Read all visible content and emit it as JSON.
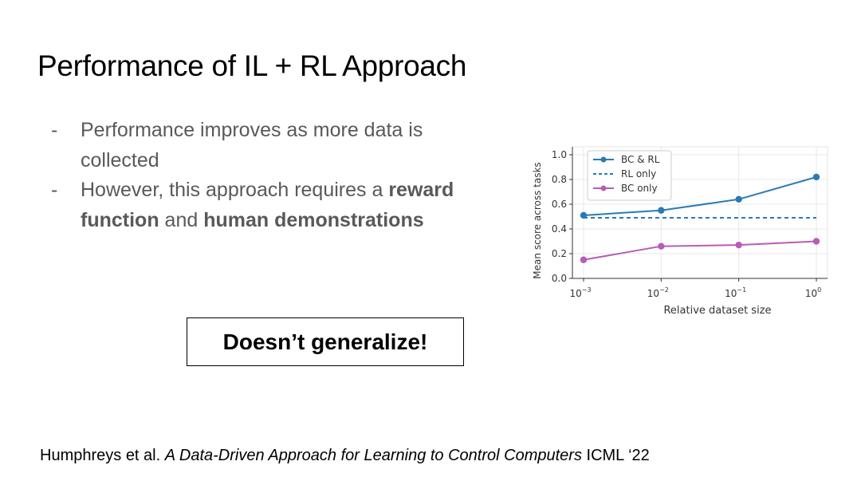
{
  "slide": {
    "title": "Performance of IL + RL Approach",
    "bullets": [
      {
        "dash": "-",
        "text": "Performance improves as more data is collected"
      },
      {
        "dash": "-",
        "parts": [
          "However, this approach requires a ",
          "reward function",
          " and ",
          "human demonstrations"
        ]
      }
    ],
    "callout": "Doesn’t generalize!",
    "citation": {
      "authors": "Humphreys et al. ",
      "title": "A Data-Driven Approach for Learning to Control Computers",
      "venue": " ICML ‘22"
    }
  },
  "chart_data": {
    "type": "line",
    "x": [
      0.001,
      0.01,
      0.1,
      1
    ],
    "x_tick_labels": [
      {
        "base": "10",
        "exp": "−3"
      },
      {
        "base": "10",
        "exp": "−2"
      },
      {
        "base": "10",
        "exp": "−1"
      },
      {
        "base": "10",
        "exp": "0"
      }
    ],
    "xscale": "log",
    "xlabel": "Relative dataset size",
    "ylabel": "Mean score across tasks",
    "ylim": [
      0.0,
      1.0
    ],
    "y_ticks": [
      "0.0",
      "0.2",
      "0.4",
      "0.6",
      "0.8",
      "1.0"
    ],
    "grid": true,
    "legend_position": "top-left",
    "series": [
      {
        "name": "BC & RL",
        "values": [
          0.51,
          0.55,
          0.64,
          0.82
        ],
        "color": "#2a7ab5",
        "style": "solid",
        "markers": true
      },
      {
        "name": "RL only",
        "values": [
          0.49,
          0.49,
          0.49,
          0.49
        ],
        "color": "#2a7ab5",
        "style": "dashed",
        "markers": false
      },
      {
        "name": "BC only",
        "values": [
          0.15,
          0.26,
          0.27,
          0.3
        ],
        "color": "#b85cb8",
        "style": "solid",
        "markers": true
      }
    ]
  }
}
